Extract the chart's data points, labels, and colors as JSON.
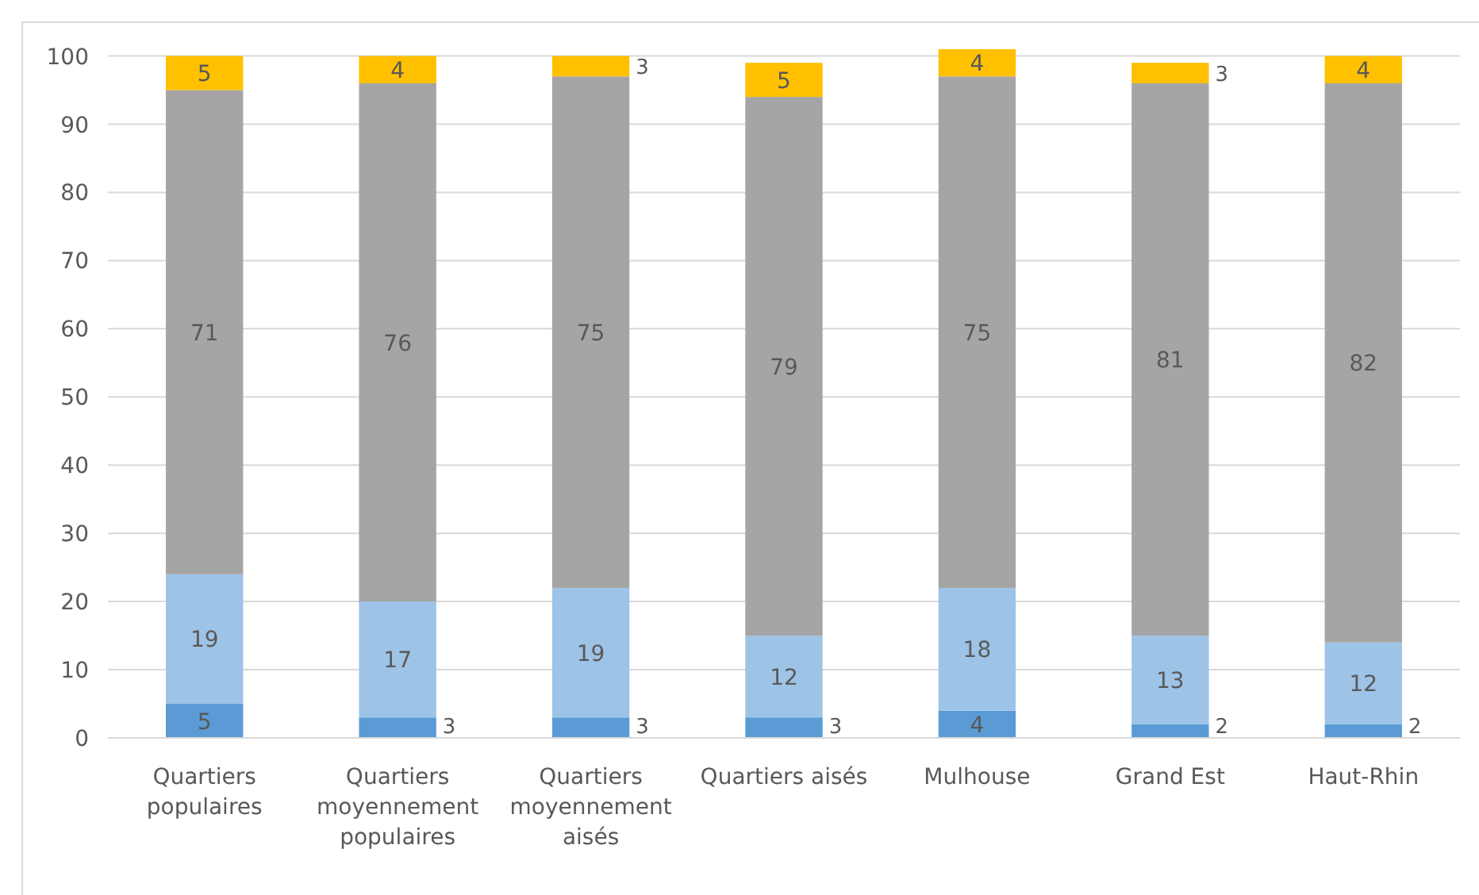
{
  "chart_data": {
    "type": "bar",
    "stacked": true,
    "data_labels": true,
    "grid": "y",
    "categories": [
      "Quartiers populaires",
      "Quartiers moyennement populaires",
      "Quartiers moyennement aisés",
      "Quartiers aisés",
      "Mulhouse",
      "Grand Est",
      "Haut-Rhin"
    ],
    "series": [
      {
        "color": "#5b9bd5",
        "values": [
          5,
          3,
          3,
          3,
          4,
          2,
          2
        ]
      },
      {
        "color": "#9dc3e6",
        "values": [
          19,
          17,
          19,
          12,
          18,
          13,
          12
        ]
      },
      {
        "color": "#a5a5a5",
        "values": [
          71,
          76,
          75,
          79,
          75,
          81,
          82
        ]
      },
      {
        "color": "#ffc000",
        "values": [
          5,
          4,
          3,
          5,
          4,
          3,
          4
        ]
      }
    ],
    "ylim": [
      0,
      101
    ],
    "yticks": [
      0,
      10,
      20,
      30,
      40,
      50,
      60,
      70,
      80,
      90,
      100
    ]
  }
}
